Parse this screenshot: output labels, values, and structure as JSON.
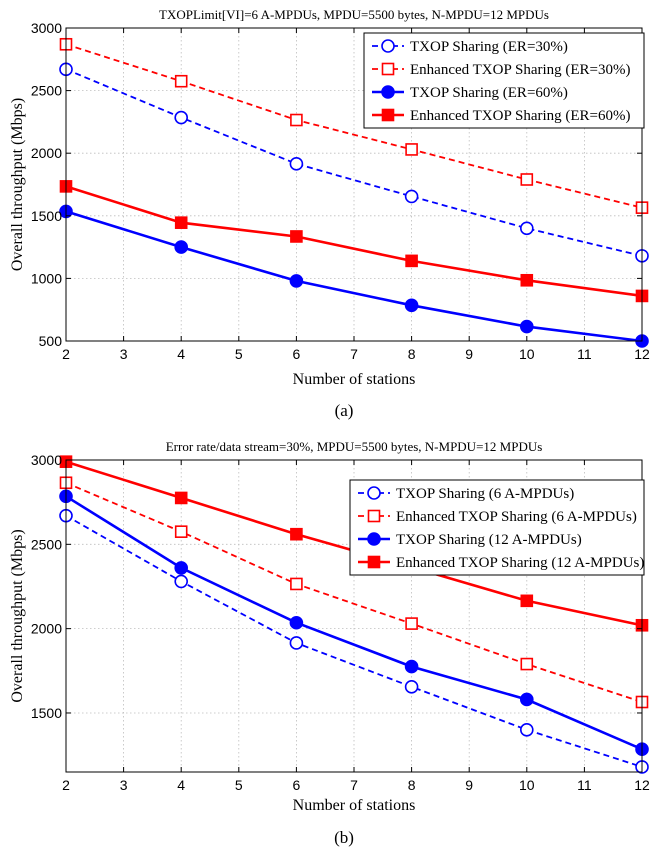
{
  "chart_data": [
    {
      "type": "line",
      "title": "TXOPLimit[VI]=6 A-MPDUs, MPDU=5500 bytes, N-MPDU=12 MPDUs",
      "xlabel": "Number of stations",
      "ylabel": "Overall throughput (Mbps)",
      "xlim": [
        2,
        12
      ],
      "ylim": [
        500,
        3000
      ],
      "xticks": [
        2,
        3,
        4,
        5,
        6,
        7,
        8,
        9,
        10,
        11,
        12
      ],
      "yticks": [
        500,
        1000,
        1500,
        2000,
        2500,
        3000
      ],
      "grid": true,
      "legend_position": "top-right",
      "caption": "(a)",
      "x": [
        2,
        4,
        6,
        8,
        10,
        12
      ],
      "series": [
        {
          "name": "TXOP Sharing (ER=30%)",
          "values": [
            2670,
            2285,
            1915,
            1655,
            1400,
            1180
          ],
          "color": "#0000ff",
          "line": "dashed",
          "marker": "circle-open"
        },
        {
          "name": "Enhanced TXOP Sharing (ER=30%)",
          "values": [
            2870,
            2575,
            2265,
            2030,
            1790,
            1565
          ],
          "color": "#ff0000",
          "line": "dashed",
          "marker": "square-open"
        },
        {
          "name": "TXOP Sharing (ER=60%)",
          "values": [
            1535,
            1250,
            980,
            785,
            615,
            500
          ],
          "color": "#0000ff",
          "line": "solid",
          "marker": "circle-filled"
        },
        {
          "name": "Enhanced TXOP Sharing (ER=60%)",
          "values": [
            1735,
            1445,
            1335,
            1140,
            985,
            860
          ],
          "color": "#ff0000",
          "line": "solid",
          "marker": "square-filled"
        }
      ]
    },
    {
      "type": "line",
      "title": "Error rate/data stream=30%, MPDU=5500 bytes, N-MPDU=12 MPDUs",
      "xlabel": "Number of stations",
      "ylabel": "Overall throughput (Mbps)",
      "xlim": [
        2,
        12
      ],
      "ylim": [
        1150,
        3000
      ],
      "xticks": [
        2,
        3,
        4,
        5,
        6,
        7,
        8,
        9,
        10,
        11,
        12
      ],
      "yticks": [
        1500,
        2000,
        2500,
        3000
      ],
      "grid": true,
      "legend_position": "top-right",
      "caption": "(b)",
      "x": [
        2,
        4,
        6,
        8,
        10,
        12
      ],
      "series": [
        {
          "name": "TXOP Sharing (6 A-MPDUs)",
          "values": [
            2670,
            2280,
            1915,
            1655,
            1400,
            1180
          ],
          "color": "#0000ff",
          "line": "dashed",
          "marker": "circle-open"
        },
        {
          "name": "Enhanced TXOP Sharing (6 A-MPDUs)",
          "values": [
            2865,
            2575,
            2265,
            2030,
            1790,
            1565
          ],
          "color": "#ff0000",
          "line": "dashed",
          "marker": "square-open"
        },
        {
          "name": "TXOP Sharing (12 A-MPDUs)",
          "values": [
            2785,
            2360,
            2035,
            1775,
            1580,
            1285
          ],
          "color": "#0000ff",
          "line": "solid",
          "marker": "circle-filled"
        },
        {
          "name": "Enhanced TXOP Sharing (12 A-MPDUs)",
          "values": [
            2990,
            2775,
            2560,
            2365,
            2165,
            2020
          ],
          "color": "#ff0000",
          "line": "solid",
          "marker": "square-filled"
        }
      ]
    }
  ]
}
